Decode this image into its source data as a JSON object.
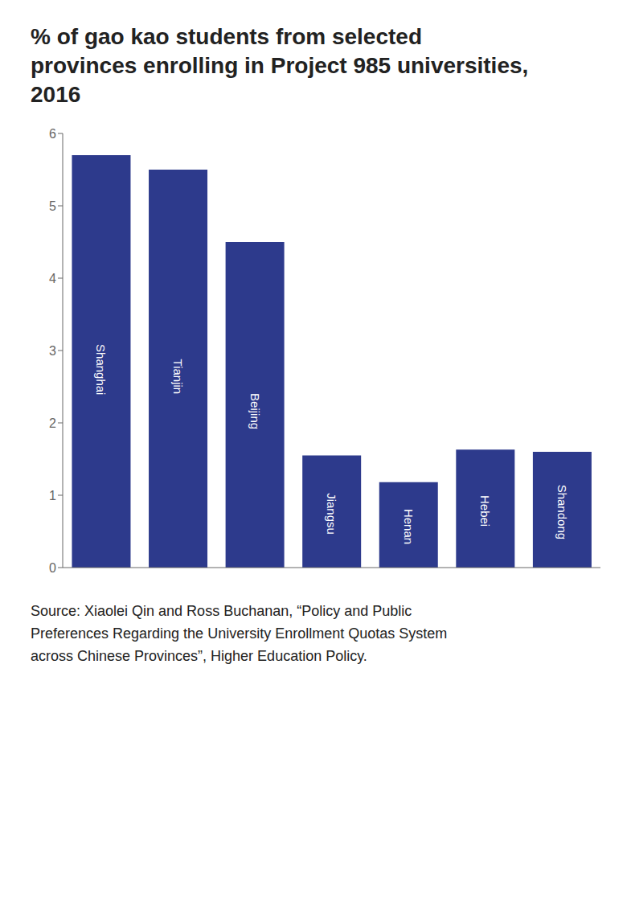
{
  "chart_data": {
    "type": "bar",
    "title": "% of gao kao students from selected provinces enrolling in Project 985 universities, 2016",
    "categories": [
      "Shanghai",
      "Tianjin",
      "Beijing",
      "Jiangsu",
      "Henan",
      "Hebei",
      "Shandong"
    ],
    "values": [
      5.7,
      5.5,
      4.5,
      1.55,
      1.18,
      1.63,
      1.6
    ],
    "color": "#2D3A8C",
    "ylim": [
      0,
      6
    ],
    "yticks": [
      0,
      1,
      2,
      3,
      4,
      5,
      6
    ],
    "grid": false,
    "tick_labels": "y",
    "annotations": [
      "Source: Xiaolei Qin and Ross Buchanan, “Policy and Public Preferences Regarding the University Enrollment Quotas System across Chinese Provinces”, Higher Education Policy."
    ]
  }
}
